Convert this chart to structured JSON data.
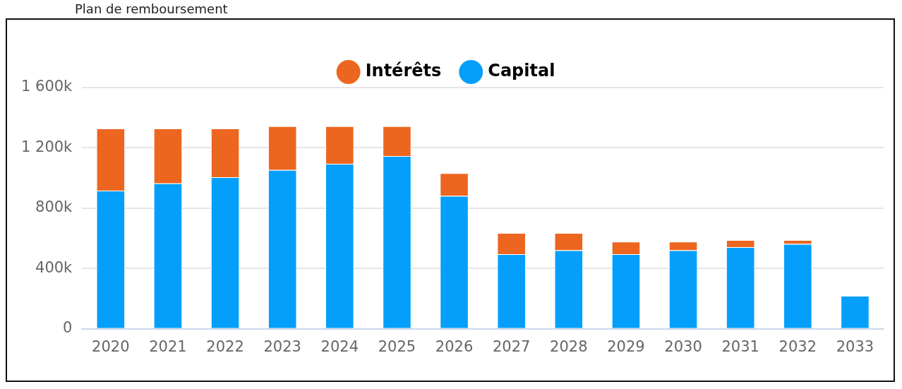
{
  "chart_data": {
    "type": "bar",
    "title": "Plan de remboursement",
    "stacked": true,
    "legend": "top",
    "grid": "y",
    "categories": [
      "2020",
      "2021",
      "2022",
      "2023",
      "2024",
      "2025",
      "2026",
      "2027",
      "2028",
      "2029",
      "2030",
      "2031",
      "2032",
      "2033"
    ],
    "series": [
      {
        "name": "Capital",
        "color": "#039ffa",
        "values": [
          917000,
          964000,
          1006000,
          1053000,
          1094000,
          1146000,
          881000,
          495000,
          521000,
          495000,
          521000,
          542000,
          563000,
          219000
        ]
      },
      {
        "name": "Intérêts",
        "color": "#ec6620",
        "values": [
          412000,
          365000,
          323000,
          291000,
          250000,
          198000,
          151000,
          141000,
          115000,
          83000,
          57000,
          47000,
          26000,
          0
        ]
      }
    ],
    "ylim": [
      0,
      1600000
    ],
    "yticks": [
      {
        "value": 0,
        "label": "0"
      },
      {
        "value": 400000,
        "label": "400k"
      },
      {
        "value": 800000,
        "label": "800k"
      },
      {
        "value": 1200000,
        "label": "1 200k"
      },
      {
        "value": 1600000,
        "label": "1 600k"
      }
    ]
  }
}
